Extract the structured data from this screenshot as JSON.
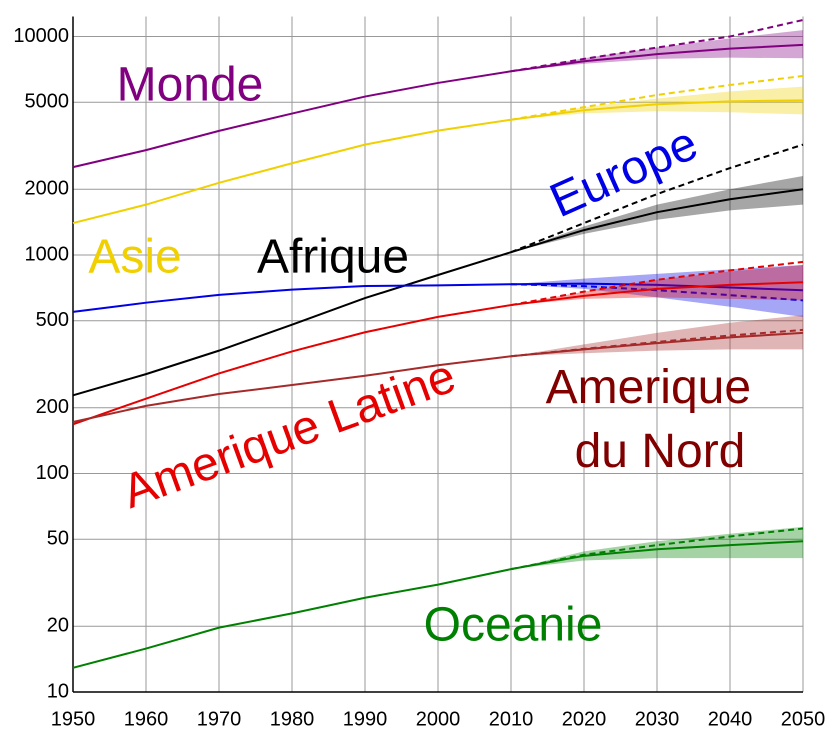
{
  "chart_data": {
    "type": "line",
    "log_y": true,
    "grid": true,
    "x": [
      1950,
      1960,
      1970,
      1980,
      1990,
      2000,
      2010,
      2020,
      2030,
      2040,
      2050
    ],
    "xlim": [
      1950,
      2050
    ],
    "xticks": [
      1950,
      1960,
      1970,
      1980,
      1990,
      2000,
      2010,
      2020,
      2030,
      2040,
      2050
    ],
    "ylim": [
      10,
      10000
    ],
    "yticks": [
      10,
      20,
      50,
      100,
      200,
      500,
      1000,
      2000,
      5000,
      10000
    ],
    "series": [
      {
        "name": "Monde",
        "color": "#800080",
        "values": [
          2525,
          3020,
          3700,
          4440,
          5310,
          6130,
          6930,
          7700,
          8300,
          8800,
          9150
        ],
        "high": [
          null,
          null,
          null,
          null,
          null,
          null,
          6930,
          7900,
          8900,
          10000,
          11900
        ],
        "band_low": [
          null,
          null,
          null,
          null,
          null,
          null,
          6930,
          7500,
          7900,
          8000,
          7950
        ],
        "band_high": [
          null,
          null,
          null,
          null,
          null,
          null,
          6930,
          7950,
          8900,
          9800,
          10700
        ]
      },
      {
        "name": "Asie",
        "color": "#f0d000",
        "values": [
          1400,
          1700,
          2140,
          2630,
          3200,
          3710,
          4160,
          4600,
          4900,
          5050,
          5100
        ],
        "high": [
          null,
          null,
          null,
          null,
          null,
          null,
          4160,
          4750,
          5400,
          6000,
          6600
        ],
        "band_low": [
          null,
          null,
          null,
          null,
          null,
          null,
          4160,
          4450,
          4550,
          4500,
          4400
        ],
        "band_high": [
          null,
          null,
          null,
          null,
          null,
          null,
          4160,
          4750,
          5200,
          5600,
          5900
        ]
      },
      {
        "name": "Afrique",
        "color": "#000000",
        "values": [
          228,
          285,
          365,
          480,
          635,
          810,
          1030,
          1300,
          1570,
          1800,
          2000
        ],
        "high": [
          null,
          null,
          null,
          null,
          null,
          null,
          1030,
          1400,
          1900,
          2500,
          3200
        ],
        "band_low": [
          null,
          null,
          null,
          null,
          null,
          null,
          1030,
          1250,
          1450,
          1600,
          1700
        ],
        "band_high": [
          null,
          null,
          null,
          null,
          null,
          null,
          1030,
          1350,
          1700,
          2000,
          2300
        ]
      },
      {
        "name": "Europe",
        "color": "#0000e6",
        "values": [
          549,
          605,
          657,
          694,
          721,
          726,
          735,
          740,
          730,
          710,
          690
        ],
        "high": [
          null,
          null,
          null,
          null,
          null,
          null,
          735,
          720,
          690,
          655,
          620
        ],
        "band_low": [
          null,
          null,
          null,
          null,
          null,
          null,
          735,
          700,
          640,
          580,
          520
        ],
        "band_high": [
          null,
          null,
          null,
          null,
          null,
          null,
          735,
          780,
          820,
          860,
          900
        ]
      },
      {
        "name": "Amerique Latine",
        "color": "#e60000",
        "values": [
          168,
          220,
          287,
          362,
          443,
          521,
          590,
          650,
          700,
          730,
          750
        ],
        "high": [
          null,
          null,
          null,
          null,
          null,
          null,
          590,
          680,
          770,
          850,
          930
        ],
        "band_low": [
          null,
          null,
          null,
          null,
          null,
          null,
          590,
          630,
          640,
          630,
          620
        ],
        "band_high": [
          null,
          null,
          null,
          null,
          null,
          null,
          590,
          680,
          770,
          840,
          900
        ]
      },
      {
        "name": "Amerique du Nord",
        "color": "#a52a2a",
        "values": [
          172,
          204,
          231,
          254,
          280,
          313,
          344,
          370,
          395,
          420,
          440
        ],
        "high": [
          null,
          null,
          null,
          null,
          null,
          null,
          344,
          372,
          400,
          428,
          454
        ],
        "band_low": [
          null,
          null,
          null,
          null,
          null,
          null,
          344,
          355,
          365,
          370,
          370
        ],
        "band_high": [
          null,
          null,
          null,
          null,
          null,
          null,
          344,
          390,
          440,
          490,
          530
        ]
      },
      {
        "name": "Oceanie",
        "color": "#008000",
        "values": [
          12.9,
          15.8,
          19.7,
          22.9,
          27,
          31,
          36.5,
          42,
          45,
          47,
          49
        ],
        "high": [
          null,
          null,
          null,
          null,
          null,
          null,
          36.5,
          42.5,
          47,
          51.5,
          56
        ],
        "band_low": [
          null,
          null,
          null,
          null,
          null,
          null,
          36.5,
          40,
          41,
          41,
          41
        ],
        "band_high": [
          null,
          null,
          null,
          null,
          null,
          null,
          36.5,
          44,
          49,
          53,
          57
        ]
      }
    ]
  }
}
